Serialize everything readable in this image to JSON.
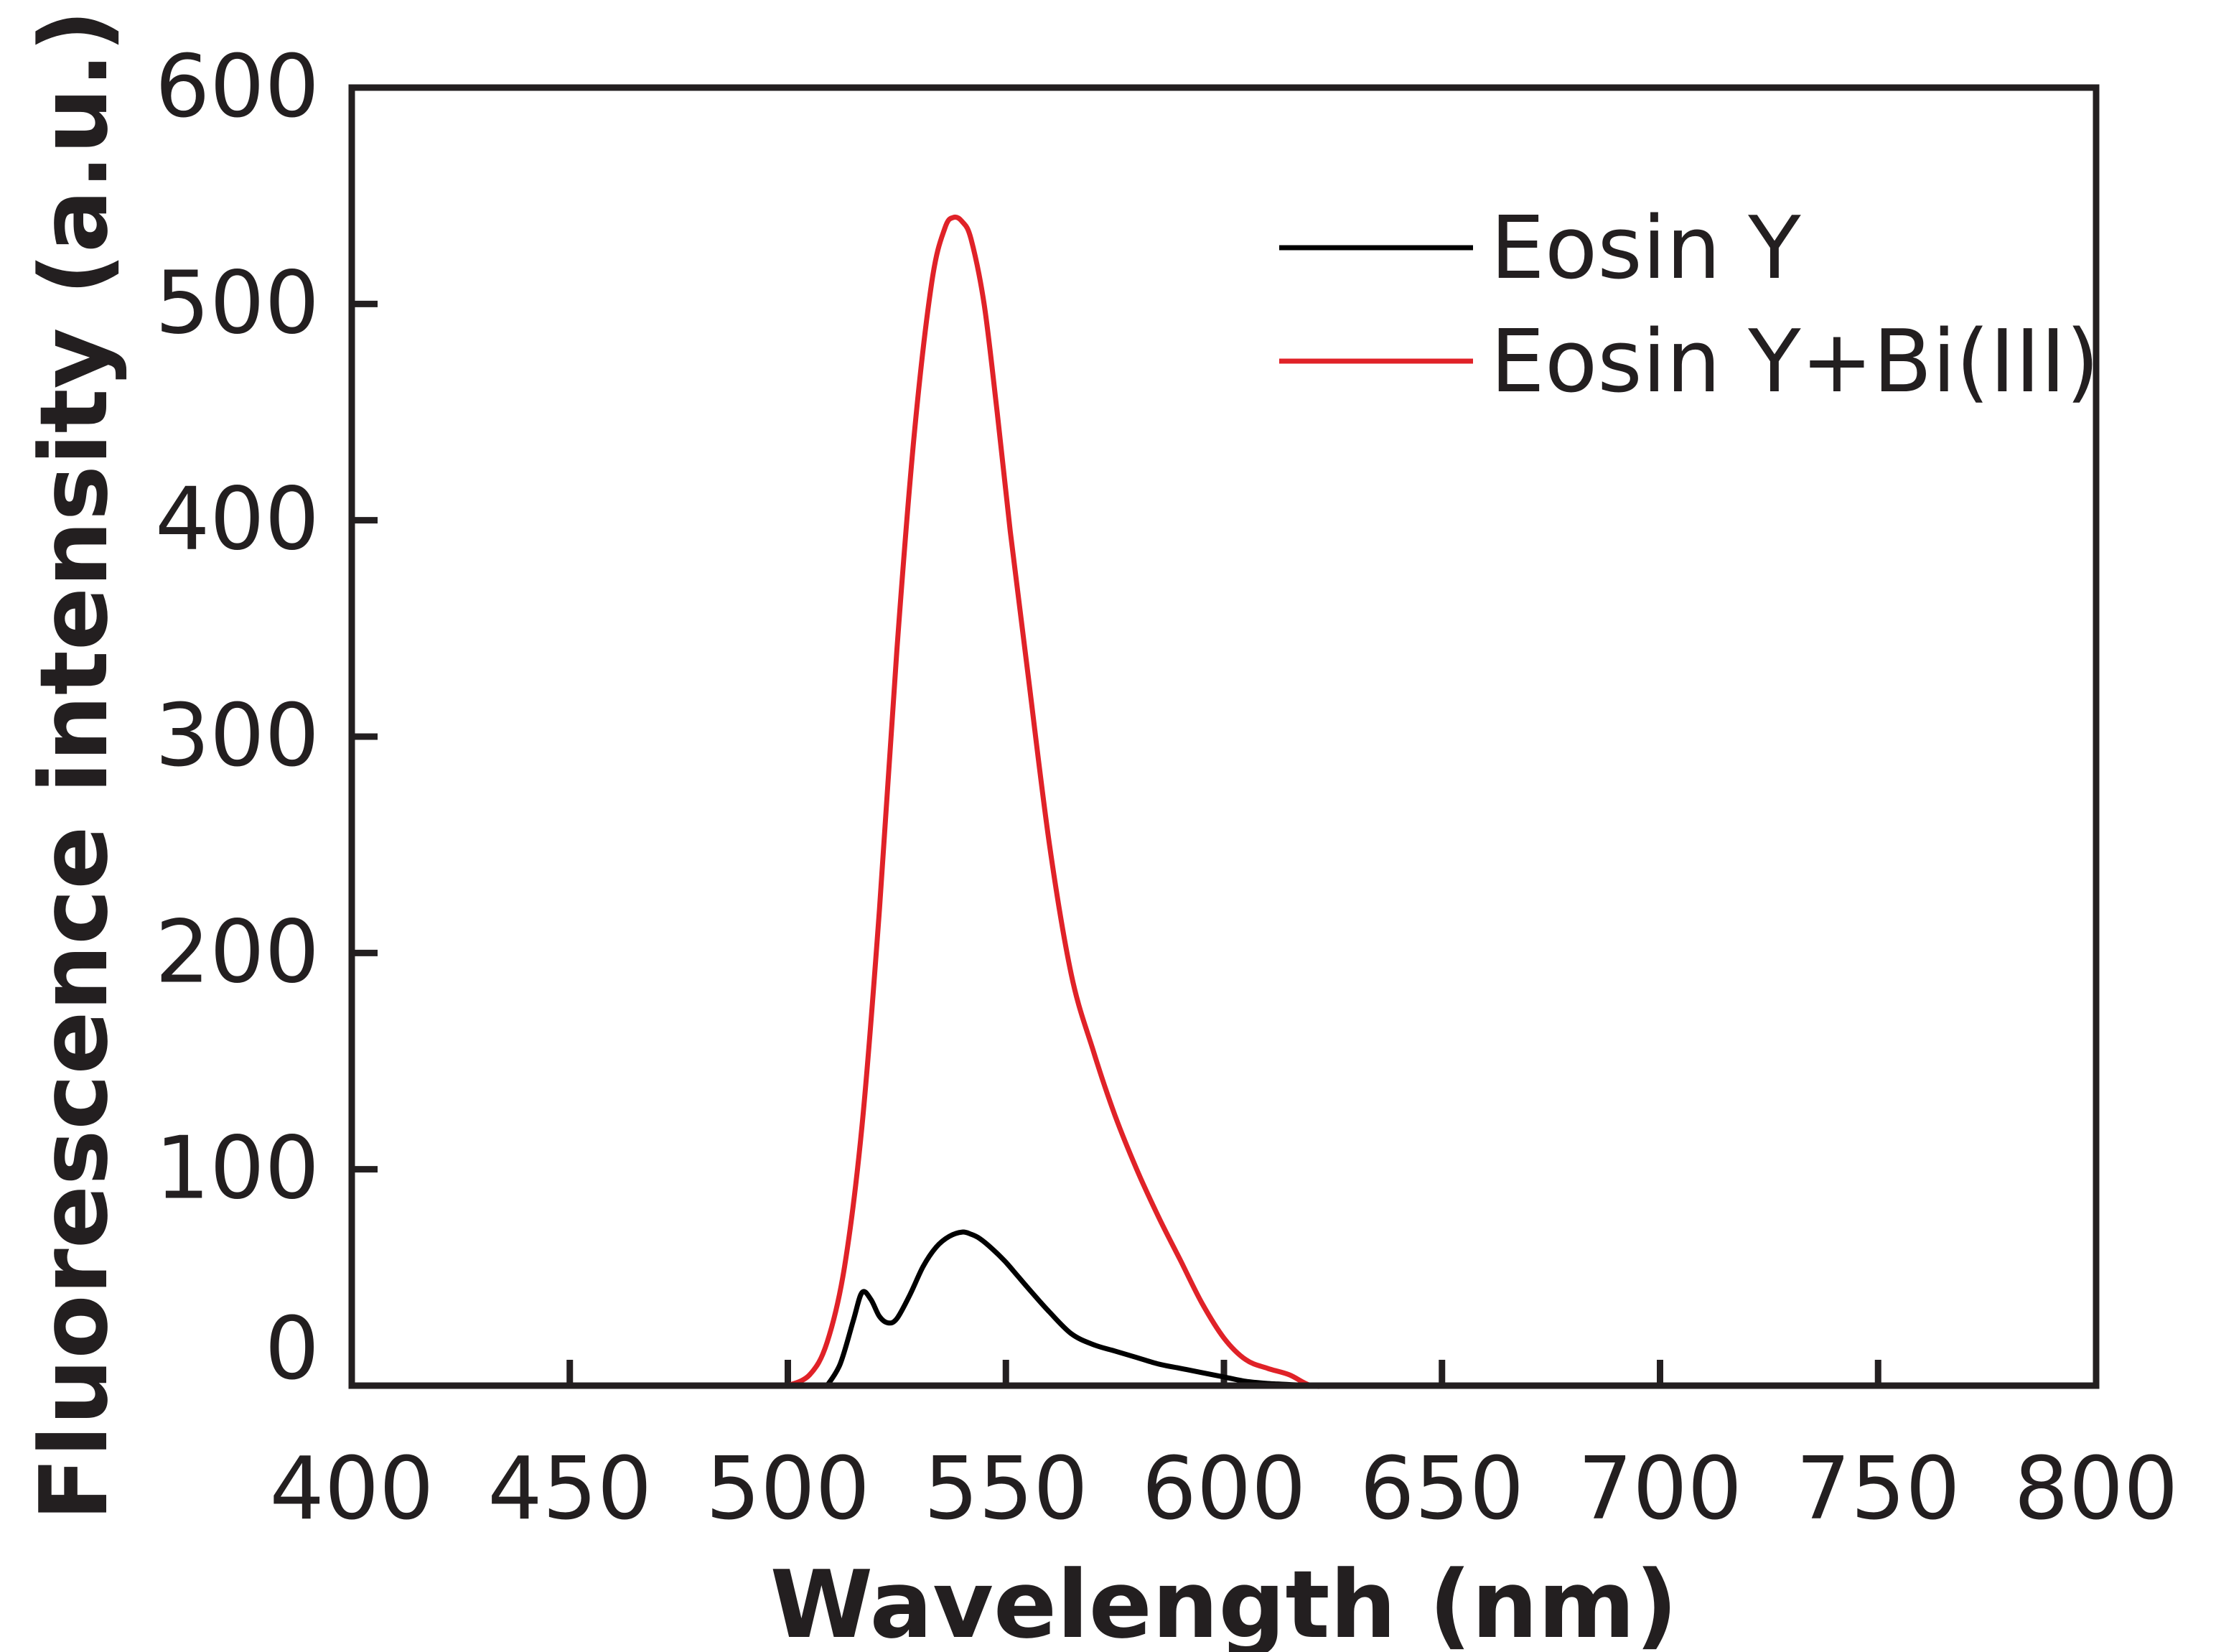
{
  "chart_data": {
    "type": "line",
    "title": "",
    "xlabel": "Wavelength (nm)",
    "ylabel": "Fluorescence intensity (a.u.)",
    "xlim": [
      400,
      800
    ],
    "ylim": [
      0,
      600
    ],
    "xticks": [
      400,
      450,
      500,
      550,
      600,
      650,
      700,
      750,
      800
    ],
    "yticks": [
      0,
      100,
      200,
      300,
      400,
      500,
      600
    ],
    "grid": false,
    "legend_position": "top-right",
    "series": [
      {
        "name": "Eosin Y",
        "color": "#000000",
        "x": [
          509,
          512,
          515,
          517,
          519,
          521,
          523,
          525,
          528,
          531,
          534,
          537,
          540,
          542,
          544,
          547,
          550,
          553,
          556,
          560,
          565,
          570,
          575,
          580,
          585,
          590,
          595,
          600,
          605,
          610,
          615,
          620,
          625,
          630
        ],
        "y": [
          0,
          10,
          30,
          43,
          40,
          32,
          29,
          31,
          42,
          55,
          64,
          69,
          71,
          70,
          68,
          63,
          57,
          50,
          43,
          34,
          24,
          19,
          16,
          13,
          10,
          8,
          6,
          4,
          2,
          1,
          0.5,
          0,
          0,
          0
        ]
      },
      {
        "name": "Eosin Y+Bi(III)",
        "color": "#e02228",
        "x": [
          500,
          505,
          509,
          513,
          517,
          521,
          525,
          529,
          533,
          536,
          538,
          540,
          542,
          545,
          548,
          551,
          555,
          560,
          565,
          570,
          575,
          580,
          585,
          590,
          595,
          600,
          605,
          610,
          615,
          620,
          625,
          630,
          640,
          650,
          660,
          670,
          678
        ],
        "y": [
          0,
          5,
          20,
          55,
          120,
          220,
          340,
          440,
          510,
          535,
          540,
          538,
          530,
          500,
          450,
          395,
          330,
          250,
          190,
          155,
          125,
          100,
          78,
          58,
          38,
          22,
          12,
          8,
          5,
          0,
          0,
          0,
          0,
          0,
          0,
          0,
          0
        ]
      }
    ]
  }
}
